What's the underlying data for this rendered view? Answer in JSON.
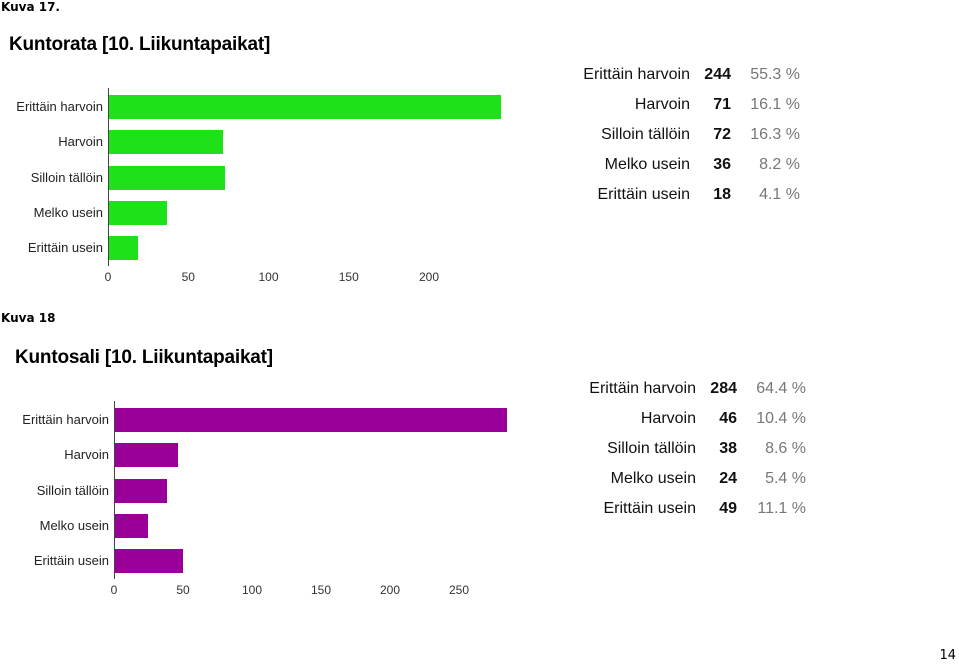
{
  "captions": [
    "Kuva 17.",
    "Kuva 18"
  ],
  "page_number": "14",
  "colors": {
    "chart1_bar": "#1ee11a",
    "chart2_bar": "#990099"
  },
  "chart_data": [
    {
      "type": "bar",
      "orientation": "horizontal",
      "title": "Kuntorata [10. Liikuntapaikat]",
      "categories": [
        "Erittäin harvoin",
        "Harvoin",
        "Silloin tällöin",
        "Melko usein",
        "Erittäin usein"
      ],
      "values": [
        244,
        71,
        72,
        36,
        18
      ],
      "percentages": [
        "55.3 %",
        "16.1 %",
        "16.3 %",
        "8.2 %",
        "4.1 %"
      ],
      "xticks": [
        "0",
        "50",
        "100",
        "150",
        "200"
      ],
      "xlim": [
        0,
        244
      ],
      "grid": false
    },
    {
      "type": "bar",
      "orientation": "horizontal",
      "title": "Kuntosali [10. Liikuntapaikat]",
      "categories": [
        "Erittäin harvoin",
        "Harvoin",
        "Silloin tällöin",
        "Melko usein",
        "Erittäin usein"
      ],
      "values": [
        284,
        46,
        38,
        24,
        49
      ],
      "percentages": [
        "64.4 %",
        "10.4 %",
        "8.6 %",
        "5.4 %",
        "11.1 %"
      ],
      "xticks": [
        "0",
        "50",
        "100",
        "150",
        "200",
        "250"
      ],
      "xlim": [
        0,
        284
      ],
      "grid": false
    }
  ]
}
